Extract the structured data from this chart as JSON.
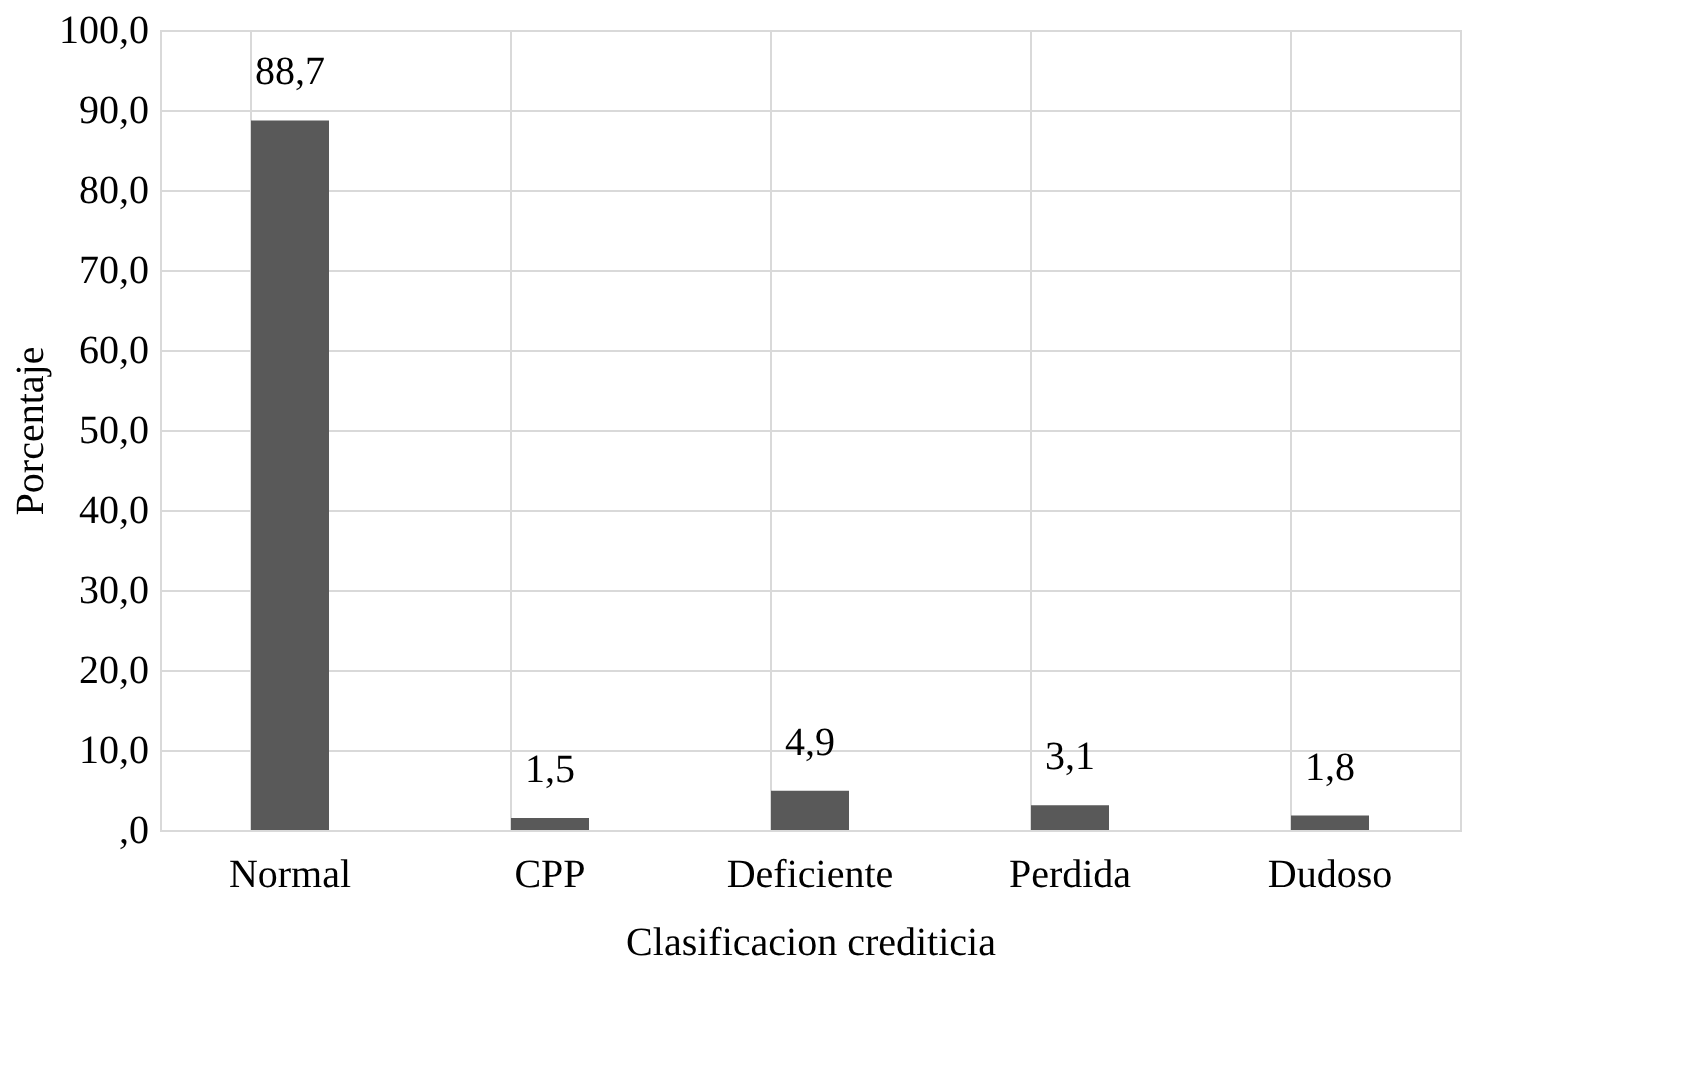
{
  "chart_data": {
    "type": "bar",
    "xlabel": "Clasificacion crediticia",
    "ylabel": "Porcentaje",
    "categories": [
      "Normal",
      "CPP",
      "Deficiente",
      "Perdida",
      "Dudoso"
    ],
    "values": [
      88.7,
      1.5,
      4.9,
      3.1,
      1.8
    ],
    "value_labels": [
      "88,7",
      "1,5",
      "4,9",
      "3,1",
      "1,8"
    ],
    "color": "#595959",
    "ylim": [
      0,
      100
    ],
    "yticks": [
      {
        "value": 0,
        "label": ",0"
      },
      {
        "value": 10,
        "label": "10,0"
      },
      {
        "value": 20,
        "label": "20,0"
      },
      {
        "value": 30,
        "label": "30,0"
      },
      {
        "value": 40,
        "label": "40,0"
      },
      {
        "value": 50,
        "label": "50,0"
      },
      {
        "value": 60,
        "label": "60,0"
      },
      {
        "value": 70,
        "label": "70,0"
      },
      {
        "value": 80,
        "label": "80,0"
      },
      {
        "value": 90,
        "label": "90,0"
      },
      {
        "value": 100,
        "label": "100,0"
      }
    ],
    "grid": true
  }
}
